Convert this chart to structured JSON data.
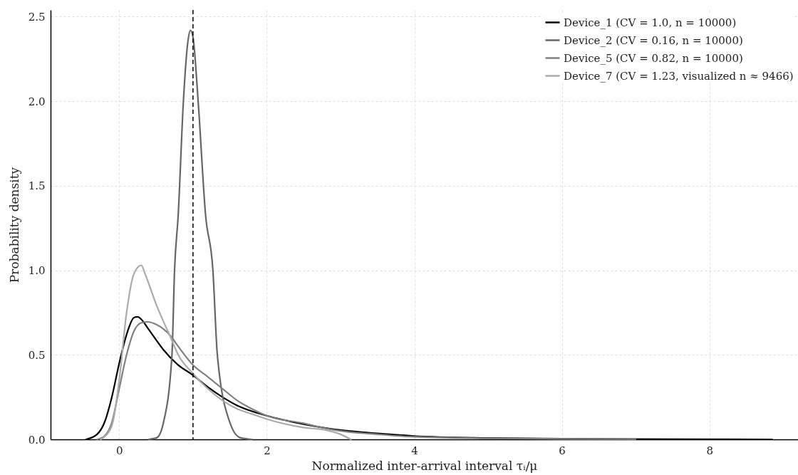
{
  "chart_data": {
    "type": "line",
    "xlabel": "Normalized inter-arrival interval τᵢ/μ",
    "ylabel": "Probability density",
    "xlim": [
      -0.93,
      9.2
    ],
    "ylim": [
      0,
      2.54
    ],
    "xticks": [
      0,
      2,
      4,
      6,
      8
    ],
    "yticks": [
      {
        "value": 0,
        "label": "0.0"
      },
      {
        "value": 0.5,
        "label": "0.5"
      },
      {
        "value": 1,
        "label": "1.0"
      },
      {
        "value": 1.5,
        "label": "1.5"
      },
      {
        "value": 2,
        "label": "2.0"
      },
      {
        "value": 2.5,
        "label": "2.5"
      }
    ],
    "grid": true,
    "legend": "top right",
    "line_style": "solid",
    "marker": "none",
    "ref_lines": [
      {
        "axis": "x",
        "value": 1,
        "color": "#000000",
        "line_style": "dashed"
      }
    ],
    "series": [
      {
        "name": "Device_1 (CV = 1.0, n = 10000)",
        "color": "#000000",
        "x": [
          -0.45,
          -0.3,
          -0.2,
          -0.1,
          0,
          0.1,
          0.2,
          0.25,
          0.3,
          0.4,
          0.6,
          0.8,
          1.0,
          1.2,
          1.4,
          1.6,
          2.0,
          2.5,
          2.83,
          3.0,
          3.5,
          4,
          5,
          6,
          7,
          8,
          8.85
        ],
        "values": [
          0,
          0.03,
          0.1,
          0.25,
          0.45,
          0.62,
          0.72,
          0.725,
          0.71,
          0.65,
          0.53,
          0.44,
          0.38,
          0.31,
          0.25,
          0.2,
          0.14,
          0.09,
          0.065,
          0.055,
          0.035,
          0.02,
          0.008,
          0.004,
          0.002,
          0.001,
          0
        ]
      },
      {
        "name": "Device_2 (CV = 0.16, n = 10000)",
        "color": "#666666",
        "x": [
          0.4,
          0.51,
          0.6,
          0.715,
          0.75,
          0.8,
          0.87,
          0.93,
          0.966,
          1.0,
          1.07,
          1.17,
          1.27,
          1.33,
          1.5,
          1.64,
          1.8
        ],
        "values": [
          0,
          0.01,
          0.1,
          0.5,
          1.0,
          1.33,
          2.0,
          2.35,
          2.42,
          2.38,
          2.0,
          1.33,
          1.0,
          0.5,
          0.1,
          0.01,
          0
        ]
      },
      {
        "name": "Device_5 (CV = 0.82, n = 10000)",
        "color": "#808080",
        "x": [
          -0.3,
          -0.2,
          -0.1,
          0,
          0.1,
          0.2,
          0.3,
          0.39,
          0.5,
          0.7,
          0.8,
          1.0,
          1.2,
          1.4,
          1.6,
          1.8,
          2.0,
          2.5,
          2.8,
          3.0,
          3.5,
          4,
          5,
          6,
          7
        ],
        "values": [
          0,
          0.02,
          0.1,
          0.3,
          0.5,
          0.64,
          0.69,
          0.695,
          0.68,
          0.61,
          0.55,
          0.44,
          0.37,
          0.3,
          0.23,
          0.18,
          0.14,
          0.095,
          0.065,
          0.05,
          0.03,
          0.015,
          0.006,
          0.003,
          0.001
        ]
      },
      {
        "name": "Device_7 (CV = 1.23, visualized n ≈ 9466)",
        "color": "#aaaaaa",
        "x": [
          -0.25,
          -0.1,
          0,
          0.1,
          0.2,
          0.3,
          0.35,
          0.5,
          0.7,
          0.8,
          1.0,
          1.2,
          1.4,
          1.6,
          1.8,
          2.0,
          2.5,
          2.8,
          3.0,
          3.14
        ],
        "values": [
          0,
          0.08,
          0.35,
          0.75,
          0.98,
          1.03,
          0.98,
          0.8,
          0.6,
          0.5,
          0.39,
          0.3,
          0.23,
          0.18,
          0.15,
          0.12,
          0.07,
          0.055,
          0.03,
          0
        ]
      }
    ]
  }
}
